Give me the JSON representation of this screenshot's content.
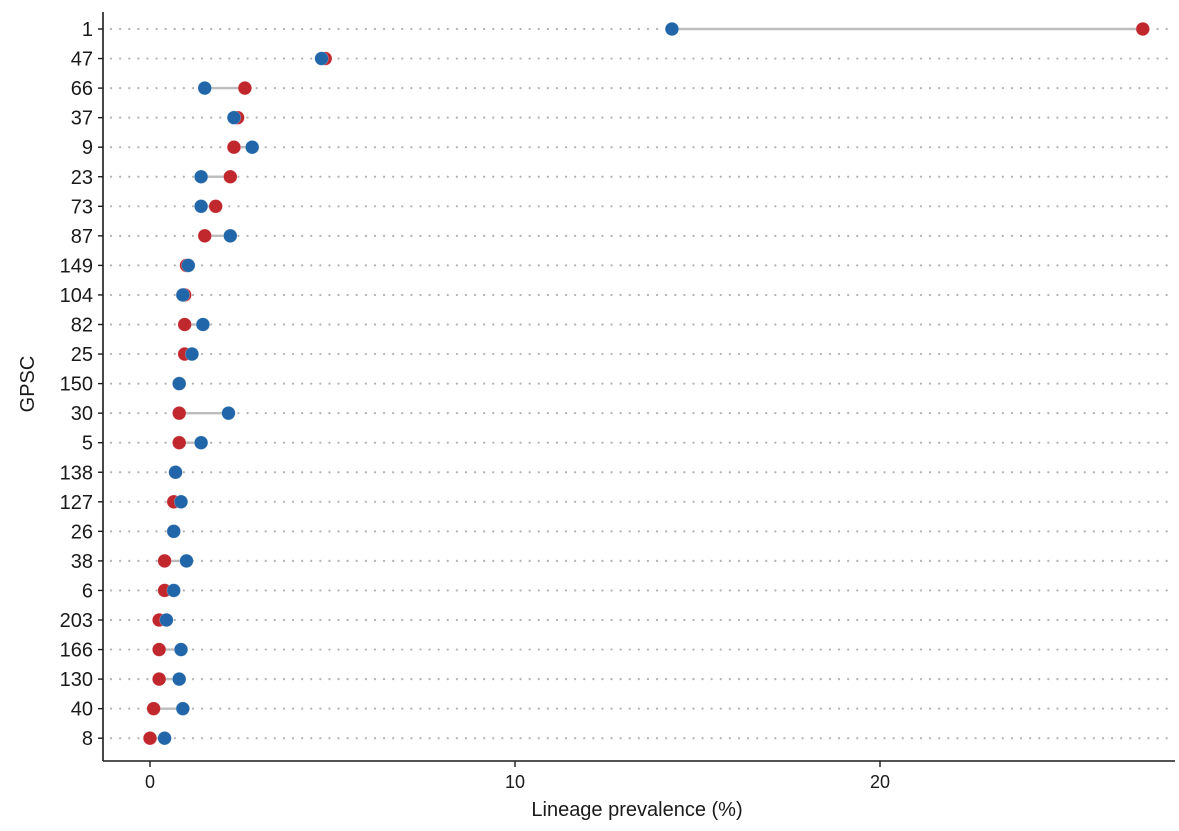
{
  "chart_data": {
    "type": "scatter",
    "subtype": "dumbbell",
    "title": "",
    "xlabel": "Lineage prevalence (%)",
    "ylabel": "GPSC",
    "xlim": [
      -1.2,
      28
    ],
    "xticks": [
      0,
      10,
      20
    ],
    "grid": "dotted horizontal lines per category",
    "legend": "none",
    "colors": {
      "red": "#c0282e",
      "blue": "#2166a8",
      "connector": "#bdbdbd",
      "grid": "#b3b3b3",
      "axis": "#1a1a1a"
    },
    "categories": [
      "1",
      "47",
      "66",
      "37",
      "9",
      "23",
      "73",
      "87",
      "149",
      "104",
      "82",
      "25",
      "150",
      "30",
      "5",
      "138",
      "127",
      "26",
      "38",
      "6",
      "203",
      "166",
      "130",
      "40",
      "8"
    ],
    "series": [
      {
        "color": "red",
        "values": [
          27.2,
          4.8,
          2.6,
          2.4,
          2.3,
          2.2,
          1.8,
          1.5,
          1.0,
          0.95,
          0.95,
          0.95,
          0.8,
          0.8,
          0.8,
          0.7,
          0.65,
          0.65,
          0.4,
          0.4,
          0.25,
          0.25,
          0.25,
          0.1,
          0.0
        ]
      },
      {
        "color": "blue",
        "values": [
          14.3,
          4.7,
          1.5,
          2.3,
          2.8,
          1.4,
          1.4,
          2.2,
          1.05,
          0.9,
          1.45,
          1.15,
          0.8,
          2.15,
          1.4,
          0.7,
          0.85,
          0.65,
          1.0,
          0.65,
          0.45,
          0.85,
          0.8,
          0.9,
          0.4
        ]
      }
    ]
  }
}
